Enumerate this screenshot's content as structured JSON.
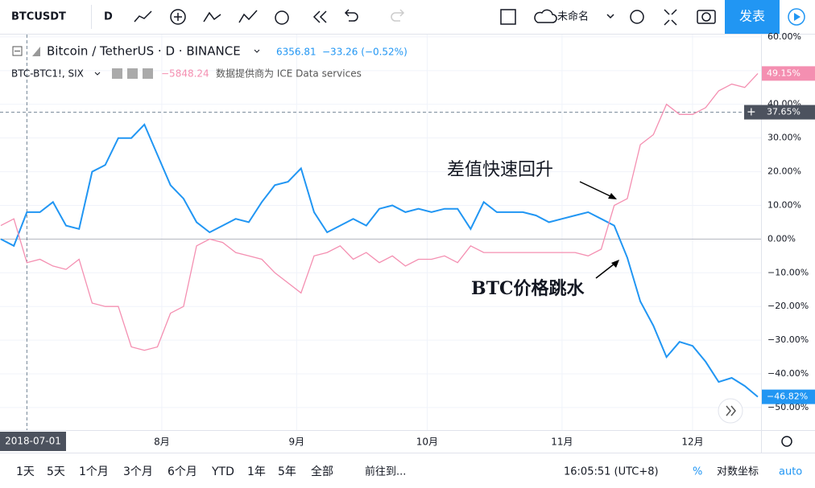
{
  "toolbar": {
    "symbol": "BTCUSDT",
    "interval": "D",
    "layout_name": "未命名",
    "publish": "发表"
  },
  "legend": {
    "main": "Bitcoin / TetherUS · D · BINANCE",
    "price": "6356.81",
    "change": "−33.26 (−0.52%)",
    "compare": "BTC-BTC1!, SIX",
    "compare_value": "−5848.24",
    "provider": "数据提供商为 ICE Data services"
  },
  "chart_data": {
    "type": "line",
    "x": [
      "2018-06-25",
      "2018-06-28",
      "2018-07-01",
      "2018-07-04",
      "2018-07-07",
      "2018-07-10",
      "2018-07-13",
      "2018-07-16",
      "2018-07-19",
      "2018-07-22",
      "2018-07-25",
      "2018-07-28",
      "2018-07-31",
      "2018-08-03",
      "2018-08-06",
      "2018-08-09",
      "2018-08-12",
      "2018-08-15",
      "2018-08-18",
      "2018-08-21",
      "2018-08-24",
      "2018-08-27",
      "2018-08-30",
      "2018-09-02",
      "2018-09-05",
      "2018-09-08",
      "2018-09-11",
      "2018-09-14",
      "2018-09-17",
      "2018-09-20",
      "2018-09-23",
      "2018-09-26",
      "2018-09-29",
      "2018-10-02",
      "2018-10-05",
      "2018-10-08",
      "2018-10-11",
      "2018-10-14",
      "2018-10-17",
      "2018-10-20",
      "2018-10-23",
      "2018-10-26",
      "2018-10-29",
      "2018-11-01",
      "2018-11-04",
      "2018-11-07",
      "2018-11-10",
      "2018-11-13",
      "2018-11-16",
      "2018-11-19",
      "2018-11-22",
      "2018-11-25",
      "2018-11-28",
      "2018-12-01",
      "2018-12-04",
      "2018-12-07",
      "2018-12-10",
      "2018-12-13",
      "2018-12-16"
    ],
    "series": [
      {
        "name": "Bitcoin / TetherUS",
        "color": "#2196f3",
        "last_value_label": "−46.82%",
        "values": [
          0,
          -2,
          8,
          8,
          11,
          4,
          3,
          20,
          22,
          30,
          30,
          34,
          25,
          16,
          12,
          5,
          2,
          4,
          6,
          5,
          11,
          16,
          17,
          21,
          8,
          2,
          4,
          6,
          4,
          9,
          10,
          8,
          9,
          8,
          9,
          9,
          3,
          11,
          8,
          8,
          8,
          7,
          5,
          6,
          7,
          8,
          6,
          4,
          -5.5,
          -18.5,
          -25.7,
          -35,
          -30.5,
          -31.7,
          -36.4,
          -42.4,
          -41.2,
          -43.6,
          -46.82
        ]
      },
      {
        "name": "BTC-BTC1!, SIX",
        "color": "#f48fb1",
        "last_value_label": "49.15%",
        "values": [
          4,
          6,
          -7,
          -6,
          -8,
          -9,
          -6,
          -19,
          -20,
          -20,
          -32,
          -33,
          -32,
          -22,
          -20,
          -2,
          0,
          -1,
          -4,
          -5,
          -6,
          -10,
          -13,
          -16,
          -5,
          -4,
          -2,
          -6,
          -4,
          -7,
          -5,
          -8,
          -6,
          -6,
          -5,
          -7,
          -2,
          -4,
          -4,
          -4,
          -4,
          -4,
          -4,
          -4,
          -4,
          -5,
          -3,
          10,
          12,
          28,
          31,
          40,
          37,
          37,
          39,
          44,
          46,
          45,
          49.15
        ]
      }
    ],
    "xlim": [
      "2018-06-25",
      "2018-12-16"
    ],
    "xticks": [
      {
        "value": "2018-08-01",
        "label": "8月"
      },
      {
        "value": "2018-09-01",
        "label": "9月"
      },
      {
        "value": "2018-10-01",
        "label": "10月"
      },
      {
        "value": "2018-11-01",
        "label": "11月"
      },
      {
        "value": "2018-12-01",
        "label": "12月"
      }
    ],
    "ylim": [
      -56.7,
      60.7
    ],
    "yticks": [
      {
        "value": 60,
        "label": "60.00%"
      },
      {
        "value": 50,
        "label": "50.00%"
      },
      {
        "value": 40,
        "label": "40.00%"
      },
      {
        "value": 30,
        "label": "30.00%"
      },
      {
        "value": 20,
        "label": "20.00%"
      },
      {
        "value": 10,
        "label": "10.00%"
      },
      {
        "value": 0,
        "label": "0.00%"
      },
      {
        "value": -10,
        "label": "−10.00%"
      },
      {
        "value": -20,
        "label": "−20.00%"
      },
      {
        "value": -30,
        "label": "−30.00%"
      },
      {
        "value": -40,
        "label": "−40.00%"
      },
      {
        "value": -50,
        "label": "−50.00%"
      }
    ],
    "crosshair": {
      "x": "2018-07-01",
      "y": {
        "value": 37.65,
        "label": "37.65%"
      }
    },
    "annotations": [
      "差值快速回升",
      "BTC价格跳水"
    ]
  },
  "bottom_bar": {
    "ranges": [
      "1天",
      "5天",
      "1个月",
      "3个月",
      "6个月",
      "YTD",
      "1年",
      "5年",
      "全部"
    ],
    "goto": "前往到...",
    "clock": "16:05:51 (UTC+8)",
    "percent": "%",
    "log": "对数坐标",
    "auto": "auto"
  }
}
